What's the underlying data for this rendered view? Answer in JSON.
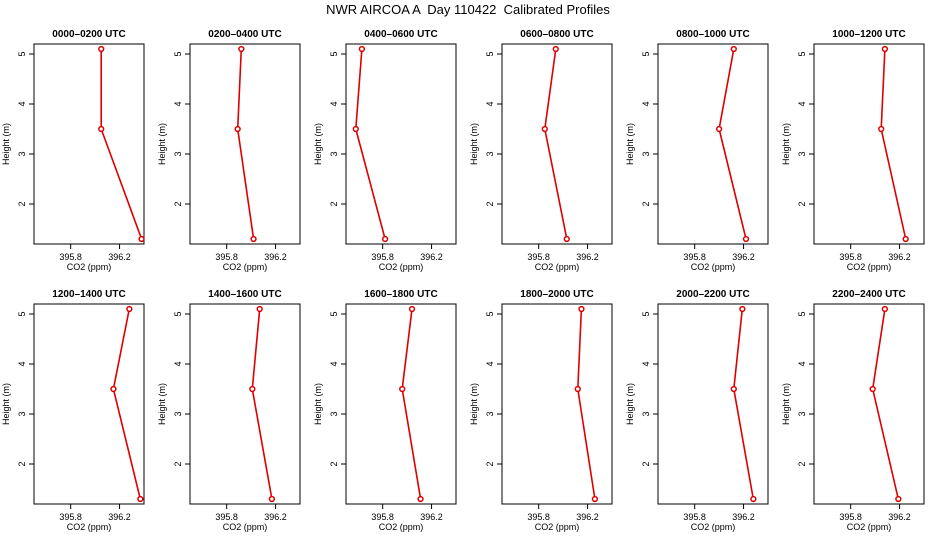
{
  "title": "NWR AIRCOA A  Day 110422  Calibrated Profiles",
  "colors": {
    "series": "#dd0000",
    "axis": "#000000"
  },
  "chart_data": [
    {
      "type": "line",
      "title": "0000–0200 UTC",
      "xlabel": "CO2 (ppm)",
      "ylabel": "Height (m)",
      "xlim": [
        395.5,
        396.4
      ],
      "ylim": [
        1.2,
        5.2
      ],
      "xticks": [
        "395.8",
        "396.2"
      ],
      "yticks": [
        "2",
        "3",
        "4",
        "5"
      ],
      "points": [
        {
          "x": 396.05,
          "y": 5.1
        },
        {
          "x": 396.05,
          "y": 3.5
        },
        {
          "x": 396.38,
          "y": 1.3
        }
      ]
    },
    {
      "type": "line",
      "title": "0200–0400 UTC",
      "xlabel": "CO2 (ppm)",
      "ylabel": "Height (m)",
      "xlim": [
        395.5,
        396.4
      ],
      "ylim": [
        1.2,
        5.2
      ],
      "xticks": [
        "395.8",
        "396.2"
      ],
      "yticks": [
        "2",
        "3",
        "4",
        "5"
      ],
      "points": [
        {
          "x": 395.92,
          "y": 5.1
        },
        {
          "x": 395.89,
          "y": 3.5
        },
        {
          "x": 396.02,
          "y": 1.3
        }
      ]
    },
    {
      "type": "line",
      "title": "0400–0600 UTC",
      "xlabel": "CO2 (ppm)",
      "ylabel": "Height (m)",
      "xlim": [
        395.5,
        396.4
      ],
      "ylim": [
        1.2,
        5.2
      ],
      "xticks": [
        "395.8",
        "396.2"
      ],
      "yticks": [
        "2",
        "3",
        "4",
        "5"
      ],
      "points": [
        {
          "x": 395.63,
          "y": 5.1
        },
        {
          "x": 395.58,
          "y": 3.5
        },
        {
          "x": 395.82,
          "y": 1.3
        }
      ]
    },
    {
      "type": "line",
      "title": "0600–0800 UTC",
      "xlabel": "CO2 (ppm)",
      "ylabel": "Height (m)",
      "xlim": [
        395.5,
        396.4
      ],
      "ylim": [
        1.2,
        5.2
      ],
      "xticks": [
        "395.8",
        "396.2"
      ],
      "yticks": [
        "2",
        "3",
        "4",
        "5"
      ],
      "points": [
        {
          "x": 395.94,
          "y": 5.1
        },
        {
          "x": 395.85,
          "y": 3.5
        },
        {
          "x": 396.03,
          "y": 1.3
        }
      ]
    },
    {
      "type": "line",
      "title": "0800–1000 UTC",
      "xlabel": "CO2 (ppm)",
      "ylabel": "Height (m)",
      "xlim": [
        395.5,
        396.4
      ],
      "ylim": [
        1.2,
        5.2
      ],
      "xticks": [
        "395.8",
        "396.2"
      ],
      "yticks": [
        "2",
        "3",
        "4",
        "5"
      ],
      "points": [
        {
          "x": 396.12,
          "y": 5.1
        },
        {
          "x": 396.0,
          "y": 3.5
        },
        {
          "x": 396.22,
          "y": 1.3
        }
      ]
    },
    {
      "type": "line",
      "title": "1000–1200 UTC",
      "xlabel": "CO2 (ppm)",
      "ylabel": "Height (m)",
      "xlim": [
        395.5,
        396.4
      ],
      "ylim": [
        1.2,
        5.2
      ],
      "xticks": [
        "395.8",
        "396.2"
      ],
      "yticks": [
        "2",
        "3",
        "4",
        "5"
      ],
      "points": [
        {
          "x": 396.08,
          "y": 5.1
        },
        {
          "x": 396.05,
          "y": 3.5
        },
        {
          "x": 396.25,
          "y": 1.3
        }
      ]
    },
    {
      "type": "line",
      "title": "1200–1400 UTC",
      "xlabel": "CO2 (ppm)",
      "ylabel": "Height (m)",
      "xlim": [
        395.5,
        396.4
      ],
      "ylim": [
        1.2,
        5.2
      ],
      "xticks": [
        "395.8",
        "396.2"
      ],
      "yticks": [
        "2",
        "3",
        "4",
        "5"
      ],
      "points": [
        {
          "x": 396.28,
          "y": 5.1
        },
        {
          "x": 396.15,
          "y": 3.5
        },
        {
          "x": 396.37,
          "y": 1.3
        }
      ]
    },
    {
      "type": "line",
      "title": "1400–1600 UTC",
      "xlabel": "CO2 (ppm)",
      "ylabel": "Height (m)",
      "xlim": [
        395.5,
        396.4
      ],
      "ylim": [
        1.2,
        5.2
      ],
      "xticks": [
        "395.8",
        "396.2"
      ],
      "yticks": [
        "2",
        "3",
        "4",
        "5"
      ],
      "points": [
        {
          "x": 396.07,
          "y": 5.1
        },
        {
          "x": 396.01,
          "y": 3.5
        },
        {
          "x": 396.17,
          "y": 1.3
        }
      ]
    },
    {
      "type": "line",
      "title": "1600–1800 UTC",
      "xlabel": "CO2 (ppm)",
      "ylabel": "Height (m)",
      "xlim": [
        395.5,
        396.4
      ],
      "ylim": [
        1.2,
        5.2
      ],
      "xticks": [
        "395.8",
        "396.2"
      ],
      "yticks": [
        "2",
        "3",
        "4",
        "5"
      ],
      "points": [
        {
          "x": 396.04,
          "y": 5.1
        },
        {
          "x": 395.96,
          "y": 3.5
        },
        {
          "x": 396.11,
          "y": 1.3
        }
      ]
    },
    {
      "type": "line",
      "title": "1800–2000 UTC",
      "xlabel": "CO2 (ppm)",
      "ylabel": "Height (m)",
      "xlim": [
        395.5,
        396.4
      ],
      "ylim": [
        1.2,
        5.2
      ],
      "xticks": [
        "395.8",
        "396.2"
      ],
      "yticks": [
        "2",
        "3",
        "4",
        "5"
      ],
      "points": [
        {
          "x": 396.15,
          "y": 5.1
        },
        {
          "x": 396.12,
          "y": 3.5
        },
        {
          "x": 396.26,
          "y": 1.3
        }
      ]
    },
    {
      "type": "line",
      "title": "2000–2200 UTC",
      "xlabel": "CO2 (ppm)",
      "ylabel": "Height (m)",
      "xlim": [
        395.5,
        396.4
      ],
      "ylim": [
        1.2,
        5.2
      ],
      "xticks": [
        "395.8",
        "396.2"
      ],
      "yticks": [
        "2",
        "3",
        "4",
        "5"
      ],
      "points": [
        {
          "x": 396.19,
          "y": 5.1
        },
        {
          "x": 396.12,
          "y": 3.5
        },
        {
          "x": 396.28,
          "y": 1.3
        }
      ]
    },
    {
      "type": "line",
      "title": "2200–2400 UTC",
      "xlabel": "CO2 (ppm)",
      "ylabel": "Height (m)",
      "xlim": [
        395.5,
        396.4
      ],
      "ylim": [
        1.2,
        5.2
      ],
      "xticks": [
        "395.8",
        "396.2"
      ],
      "yticks": [
        "2",
        "3",
        "4",
        "5"
      ],
      "points": [
        {
          "x": 396.08,
          "y": 5.1
        },
        {
          "x": 395.98,
          "y": 3.5
        },
        {
          "x": 396.19,
          "y": 1.3
        }
      ]
    }
  ]
}
